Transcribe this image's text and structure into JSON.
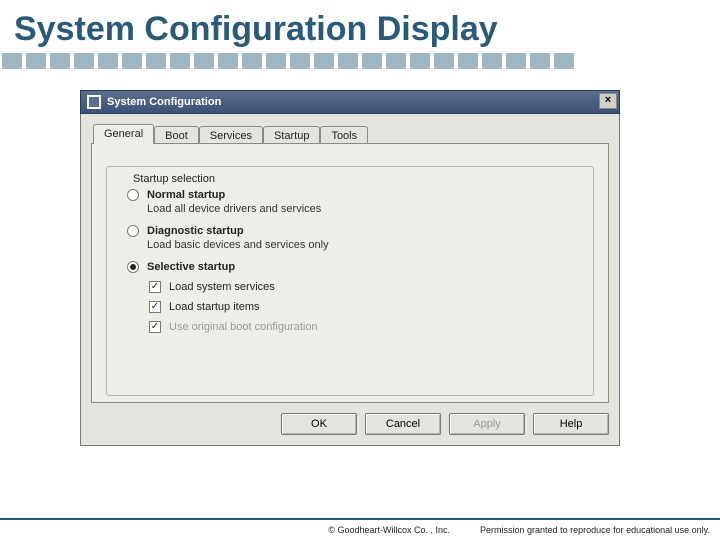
{
  "slide": {
    "title": "System Configuration Display",
    "title_color": "#2a5a7a",
    "decor_square_color": "#9eb7c3",
    "decor_square_count": 24
  },
  "window": {
    "title": "System Configuration",
    "close_glyph": "×",
    "bg": "#e4e4de",
    "panel_bg": "#eeeee8",
    "border": "#7a7a72"
  },
  "tabs": [
    {
      "label": "General",
      "active": true
    },
    {
      "label": "Boot",
      "active": false
    },
    {
      "label": "Services",
      "active": false
    },
    {
      "label": "Startup",
      "active": false
    },
    {
      "label": "Tools",
      "active": false
    }
  ],
  "group": {
    "label": "Startup selection",
    "options": [
      {
        "label": "Normal startup",
        "desc": "Load all device drivers and services",
        "selected": false
      },
      {
        "label": "Diagnostic startup",
        "desc": "Load basic devices and services only",
        "selected": false
      },
      {
        "label": "Selective startup",
        "desc": "",
        "selected": true
      }
    ],
    "subchecks": [
      {
        "label": "Load system services",
        "checked": true,
        "disabled": false
      },
      {
        "label": "Load startup items",
        "checked": true,
        "disabled": false
      },
      {
        "label": "Use original boot configuration",
        "checked": true,
        "disabled": true
      }
    ]
  },
  "buttons": {
    "ok": "OK",
    "cancel": "Cancel",
    "apply": "Apply",
    "help": "Help"
  },
  "footer": {
    "copyright": "© Goodheart-Willcox Co. , Inc.",
    "permission": "Permission granted to reproduce for educational use only."
  }
}
